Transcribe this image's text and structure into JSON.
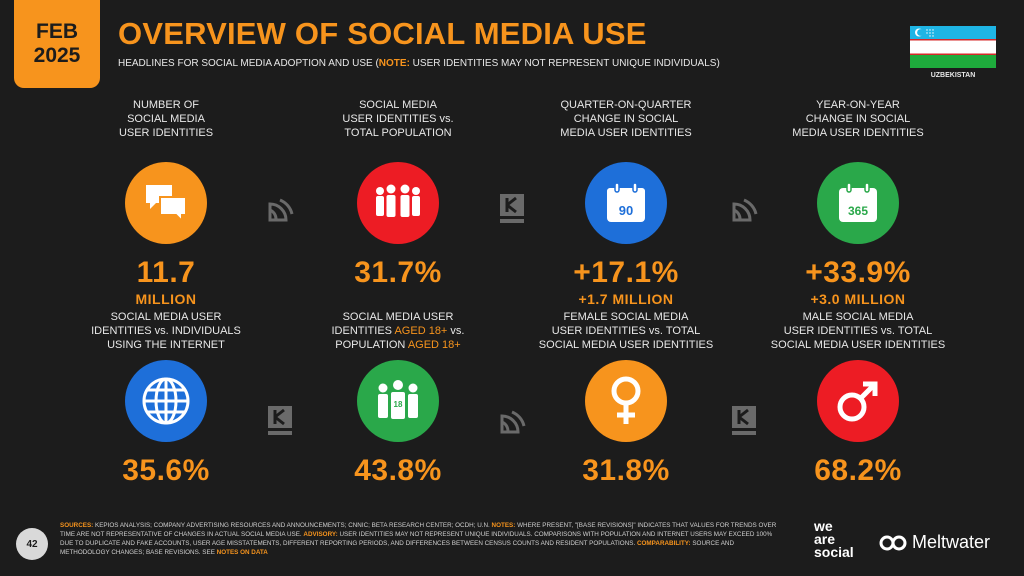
{
  "header": {
    "month": "FEB",
    "year": "2025",
    "title": "OVERVIEW OF SOCIAL MEDIA USE",
    "subtitle_main": "HEADLINES FOR SOCIAL MEDIA ADOPTION AND USE (",
    "subtitle_note_label": "NOTE:",
    "subtitle_note_text": " USER IDENTITIES MAY NOT REPRESENT UNIQUE INDIVIDUALS)",
    "country": "UZBEKISTAN"
  },
  "stats": [
    {
      "label": [
        "NUMBER OF",
        "SOCIAL MEDIA",
        "USER IDENTITIES"
      ],
      "value": "11.7",
      "sub": "MILLION",
      "icon": "speech-bubbles-icon",
      "color": "#f7941d"
    },
    {
      "label": [
        "SOCIAL MEDIA",
        "USER IDENTITIES vs.",
        "TOTAL POPULATION"
      ],
      "value": "31.7%",
      "sub": "",
      "icon": "people-group-icon",
      "color": "#ed1c24"
    },
    {
      "label": [
        "QUARTER-ON-QUARTER",
        "CHANGE IN SOCIAL",
        "MEDIA USER IDENTITIES"
      ],
      "value": "+17.1%",
      "sub": "+1.7 MILLION",
      "icon": "calendar-90-icon",
      "icon_text": "90",
      "color": "#1e6fd9"
    },
    {
      "label": [
        "YEAR-ON-YEAR",
        "CHANGE IN SOCIAL",
        "MEDIA USER IDENTITIES"
      ],
      "value": "+33.9%",
      "sub": "+3.0 MILLION",
      "icon": "calendar-365-icon",
      "icon_text": "365",
      "color": "#2aa84a"
    },
    {
      "label": [
        "SOCIAL MEDIA USER",
        "IDENTITIES vs. INDIVIDUALS",
        "USING THE INTERNET"
      ],
      "value": "35.6%",
      "sub": "",
      "icon": "globe-icon",
      "color": "#1e6fd9"
    },
    {
      "label_parts": [
        [
          "SOCIAL MEDIA USER"
        ],
        [
          "IDENTITIES ",
          "AGED 18+",
          " vs."
        ],
        [
          "POPULATION ",
          "AGED 18+"
        ]
      ],
      "value": "43.8%",
      "sub": "",
      "icon": "people-18-icon",
      "icon_text": "18",
      "color": "#2aa84a"
    },
    {
      "label": [
        "FEMALE SOCIAL MEDIA",
        "USER IDENTITIES vs. TOTAL",
        "SOCIAL MEDIA USER IDENTITIES"
      ],
      "value": "31.8%",
      "sub": "",
      "icon": "female-symbol-icon",
      "color": "#f7941d"
    },
    {
      "label": [
        "MALE SOCIAL MEDIA",
        "USER IDENTITIES vs. TOTAL",
        "SOCIAL MEDIA USER IDENTITIES"
      ],
      "value": "68.2%",
      "sub": "",
      "icon": "male-symbol-icon",
      "color": "#ed1c24"
    }
  ],
  "footer": {
    "page_number": "42",
    "sources_label": "SOURCES:",
    "sources_text": " KEPIOS ANALYSIS; COMPANY ADVERTISING RESOURCES AND ANNOUNCEMENTS; CNNIC; BETA RESEARCH CENTER; OCDH; U.N. ",
    "notes_label": "NOTES:",
    "notes_text": " WHERE PRESENT, \"[BASE REVISIONS]\" INDICATES THAT VALUES FOR TRENDS OVER TIME ARE NOT REPRESENTATIVE OF CHANGES IN ACTUAL SOCIAL MEDIA USE. ",
    "advisory_label": "ADVISORY:",
    "advisory_text": " USER IDENTITIES MAY NOT REPRESENT UNIQUE INDIVIDUALS. COMPARISONS WITH POPULATION AND INTERNET USERS MAY EXCEED 100% DUE TO DUPLICATE AND FAKE ACCOUNTS, USER AGE MISSTATEMENTS, DIFFERENT REPORTING PERIODS, AND DIFFERENCES BETWEEN CENSUS COUNTS AND RESIDENT POPULATIONS. ",
    "comparability_label": "COMPARABILITY:",
    "comparability_text": " SOURCE AND METHODOLOGY CHANGES; BASE REVISIONS. SEE ",
    "notes_on_data": "NOTES ON DATA",
    "we_are_social": [
      "we",
      "are",
      "social"
    ],
    "meltwater": "Meltwater"
  }
}
